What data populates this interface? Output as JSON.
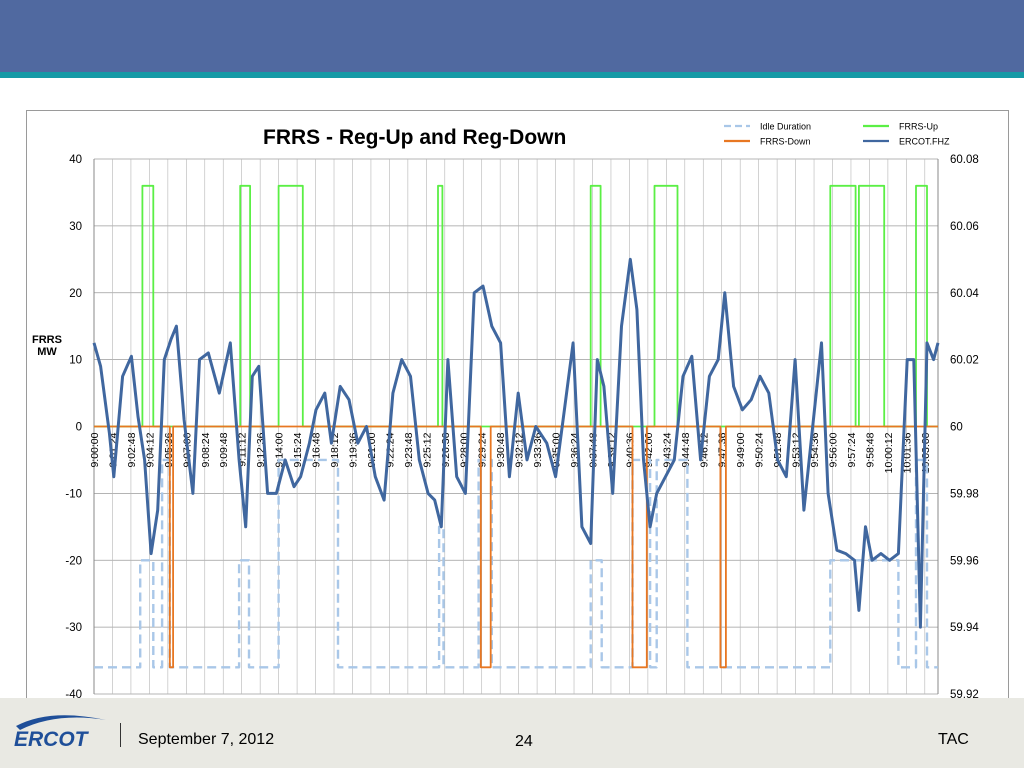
{
  "footer": {
    "logo_text": "ERCOT",
    "date": "September 7, 2012",
    "page_number": "24",
    "org": "TAC"
  },
  "chart_data": {
    "type": "line",
    "title": "FRRS -  Reg-Up and Reg-Down",
    "ylabel": "FRRS MW",
    "ylim": [
      -40,
      40
    ],
    "y_ticks": [
      "40",
      "30",
      "20",
      "10",
      "0",
      "-10",
      "-20",
      "-30",
      "-40"
    ],
    "y2lim": [
      59.92,
      60.08
    ],
    "y2_ticks": [
      "60.08",
      "60.06",
      "60.04",
      "60.02",
      "60",
      "59.98",
      "59.96",
      "59.94",
      "59.92"
    ],
    "x_range": [
      "9:00:00",
      "10:04:00"
    ],
    "x_ticks": [
      "9:00:00",
      "9:01:24",
      "9:02:48",
      "9:04:12",
      "9:05:36",
      "9:07:00",
      "9:08:24",
      "9:09:48",
      "9:11:12",
      "9:12:36",
      "9:14:00",
      "9:15:24",
      "9:16:48",
      "9:18:12",
      "9:19:36",
      "9:21:00",
      "9:22:24",
      "9:23:48",
      "9:25:12",
      "9:26:36",
      "9:28:00",
      "9:29:24",
      "9:30:48",
      "9:32:12",
      "9:33:36",
      "9:35:00",
      "9:36:24",
      "9:37:48",
      "9:39:12",
      "9:40:36",
      "9:42:00",
      "9:43:24",
      "9:44:48",
      "9:46:12",
      "9:47:36",
      "9:49:00",
      "9:50:24",
      "9:51:48",
      "9:53:12",
      "9:54:36",
      "9:56:00",
      "9:57:24",
      "9:58:48",
      "10:00:12",
      "10:01:36",
      "10:03:00"
    ],
    "grid": true,
    "legend": "top-right",
    "series": [
      {
        "name": "Idle Duration",
        "axis": "left",
        "color": "#a9c7e8",
        "style": "dashed",
        "x": [
          "9:00:00",
          "9:03:30",
          "9:03:30",
          "9:04:30",
          "9:04:30",
          "9:05:10",
          "9:05:10",
          "9:05:45",
          "9:05:45",
          "9:11:00",
          "9:11:00",
          "9:11:45",
          "9:11:45",
          "9:14:00",
          "9:14:00",
          "9:18:30",
          "9:18:30",
          "9:26:10",
          "9:26:10",
          "9:26:30",
          "9:26:30",
          "9:29:10",
          "9:29:10",
          "9:30:10",
          "9:30:10",
          "9:37:40",
          "9:37:40",
          "9:38:30",
          "9:38:30",
          "9:40:50",
          "9:40:50",
          "9:42:10",
          "9:42:10",
          "9:42:40",
          "9:42:40",
          "9:45:00",
          "9:45:00",
          "9:55:50",
          "9:55:50",
          "10:01:00",
          "10:01:00",
          "10:02:20",
          "10:02:20",
          "10:03:10",
          "10:03:10",
          "10:04:00"
        ],
        "values": [
          -36,
          -36,
          -20,
          -20,
          -36,
          -36,
          -5,
          -5,
          -36,
          -36,
          -20,
          -20,
          -36,
          -36,
          -5,
          -5,
          -36,
          -36,
          -15,
          -15,
          -36,
          -36,
          -5,
          -5,
          -36,
          -36,
          -20,
          -20,
          -36,
          -36,
          -5,
          -5,
          -36,
          -36,
          -5,
          -5,
          -36,
          -36,
          -20,
          -20,
          -36,
          -36,
          -5,
          -5,
          -36,
          -36
        ]
      },
      {
        "name": "FRRS-Up",
        "axis": "left",
        "color": "#5bef45",
        "style": "solid",
        "x": [
          "9:00:00",
          "9:03:40",
          "9:03:40",
          "9:04:30",
          "9:04:30",
          "9:11:05",
          "9:11:05",
          "9:11:50",
          "9:11:50",
          "9:14:00",
          "9:14:00",
          "9:15:50",
          "9:15:50",
          "9:26:05",
          "9:26:05",
          "9:26:25",
          "9:26:25",
          "9:37:40",
          "9:37:40",
          "9:38:25",
          "9:38:25",
          "9:42:30",
          "9:42:30",
          "9:44:15",
          "9:44:15",
          "9:55:50",
          "9:55:50",
          "9:57:45",
          "9:57:45",
          "9:58:00",
          "9:58:00",
          "9:59:55",
          "9:59:55",
          "10:02:20",
          "10:02:20",
          "10:03:10",
          "10:03:10",
          "10:04:00"
        ],
        "values": [
          0,
          0,
          36,
          36,
          0,
          0,
          36,
          36,
          0,
          0,
          36,
          36,
          0,
          0,
          36,
          36,
          0,
          0,
          36,
          36,
          0,
          0,
          36,
          36,
          0,
          0,
          36,
          36,
          0,
          0,
          36,
          36,
          0,
          0,
          36,
          36,
          0,
          0
        ]
      },
      {
        "name": "FRRS-Down",
        "axis": "left",
        "color": "#e87722",
        "style": "solid",
        "x": [
          "9:00:00",
          "9:05:45",
          "9:05:45",
          "9:06:00",
          "9:06:00",
          "9:29:20",
          "9:29:20",
          "9:30:05",
          "9:30:05",
          "9:40:50",
          "9:40:50",
          "9:41:55",
          "9:41:55",
          "9:47:30",
          "9:47:30",
          "9:47:55",
          "9:47:55",
          "10:04:00"
        ],
        "values": [
          0,
          0,
          -36,
          -36,
          0,
          0,
          -36,
          -36,
          0,
          0,
          -36,
          -36,
          0,
          0,
          -36,
          -36,
          0,
          0
        ]
      },
      {
        "name": "ERCOT.FHZ",
        "axis": "right",
        "color": "#40679f",
        "style": "solid",
        "x": [
          "9:00:00",
          "9:00:30",
          "9:01:10",
          "9:01:30",
          "9:02:10",
          "9:02:50",
          "9:03:20",
          "9:03:50",
          "9:04:20",
          "9:04:50",
          "9:05:20",
          "9:05:50",
          "9:06:15",
          "9:06:50",
          "9:07:30",
          "9:08:00",
          "9:08:40",
          "9:09:30",
          "9:10:20",
          "9:11:00",
          "9:11:30",
          "9:12:00",
          "9:12:30",
          "9:13:10",
          "9:13:50",
          "9:14:30",
          "9:15:10",
          "9:15:40",
          "9:16:20",
          "9:16:50",
          "9:17:30",
          "9:18:00",
          "9:18:40",
          "9:19:20",
          "9:20:00",
          "9:20:40",
          "9:21:20",
          "9:22:00",
          "9:22:40",
          "9:23:20",
          "9:24:00",
          "9:24:40",
          "9:25:20",
          "9:25:50",
          "9:26:20",
          "9:26:50",
          "9:27:30",
          "9:28:10",
          "9:28:50",
          "9:29:30",
          "9:30:10",
          "9:30:50",
          "9:31:30",
          "9:32:10",
          "9:32:50",
          "9:33:30",
          "9:34:20",
          "9:35:00",
          "9:35:40",
          "9:36:20",
          "9:37:00",
          "9:37:40",
          "9:38:10",
          "9:38:40",
          "9:39:20",
          "9:40:00",
          "9:40:40",
          "9:41:10",
          "9:41:40",
          "9:42:10",
          "9:42:40",
          "9:43:20",
          "9:44:00",
          "9:44:40",
          "9:45:20",
          "9:46:00",
          "9:46:40",
          "9:47:20",
          "9:47:50",
          "9:48:30",
          "9:49:10",
          "9:49:50",
          "9:50:30",
          "9:51:10",
          "9:51:50",
          "9:52:30",
          "9:53:10",
          "9:53:50",
          "9:54:30",
          "9:55:10",
          "9:55:40",
          "9:56:20",
          "9:57:00",
          "9:57:40",
          "9:58:00",
          "9:58:30",
          "9:59:00",
          "9:59:40",
          "10:00:20",
          "10:01:00",
          "10:01:40",
          "10:02:10",
          "10:02:40",
          "10:03:10",
          "10:03:40",
          "10:04:00"
        ],
        "values": [
          60.025,
          60.018,
          59.998,
          59.985,
          60.015,
          60.021,
          60.003,
          59.99,
          59.962,
          59.975,
          60.02,
          60.026,
          60.03,
          60.002,
          59.98,
          60.02,
          60.022,
          60.01,
          60.025,
          59.99,
          59.97,
          60.015,
          60.018,
          59.98,
          59.98,
          59.99,
          59.982,
          59.985,
          59.995,
          60.005,
          60.01,
          59.995,
          60.012,
          60.008,
          59.995,
          60.0,
          59.985,
          59.978,
          60.01,
          60.02,
          60.015,
          59.99,
          59.98,
          59.978,
          59.97,
          60.02,
          59.985,
          59.98,
          60.04,
          60.042,
          60.03,
          60.025,
          59.985,
          60.01,
          59.99,
          60.0,
          59.995,
          59.985,
          60.005,
          60.025,
          59.97,
          59.965,
          60.02,
          60.012,
          59.98,
          60.03,
          60.05,
          60.035,
          59.99,
          59.97,
          59.98,
          59.985,
          59.99,
          60.015,
          60.021,
          59.99,
          60.015,
          60.02,
          60.04,
          60.012,
          60.005,
          60.008,
          60.015,
          60.01,
          59.99,
          59.985,
          60.02,
          59.975,
          60.0,
          60.025,
          59.98,
          59.963,
          59.962,
          59.96,
          59.945,
          59.97,
          59.96,
          59.962,
          59.96,
          59.962,
          60.02,
          60.02,
          59.94,
          60.025,
          60.02,
          60.025
        ]
      }
    ]
  }
}
